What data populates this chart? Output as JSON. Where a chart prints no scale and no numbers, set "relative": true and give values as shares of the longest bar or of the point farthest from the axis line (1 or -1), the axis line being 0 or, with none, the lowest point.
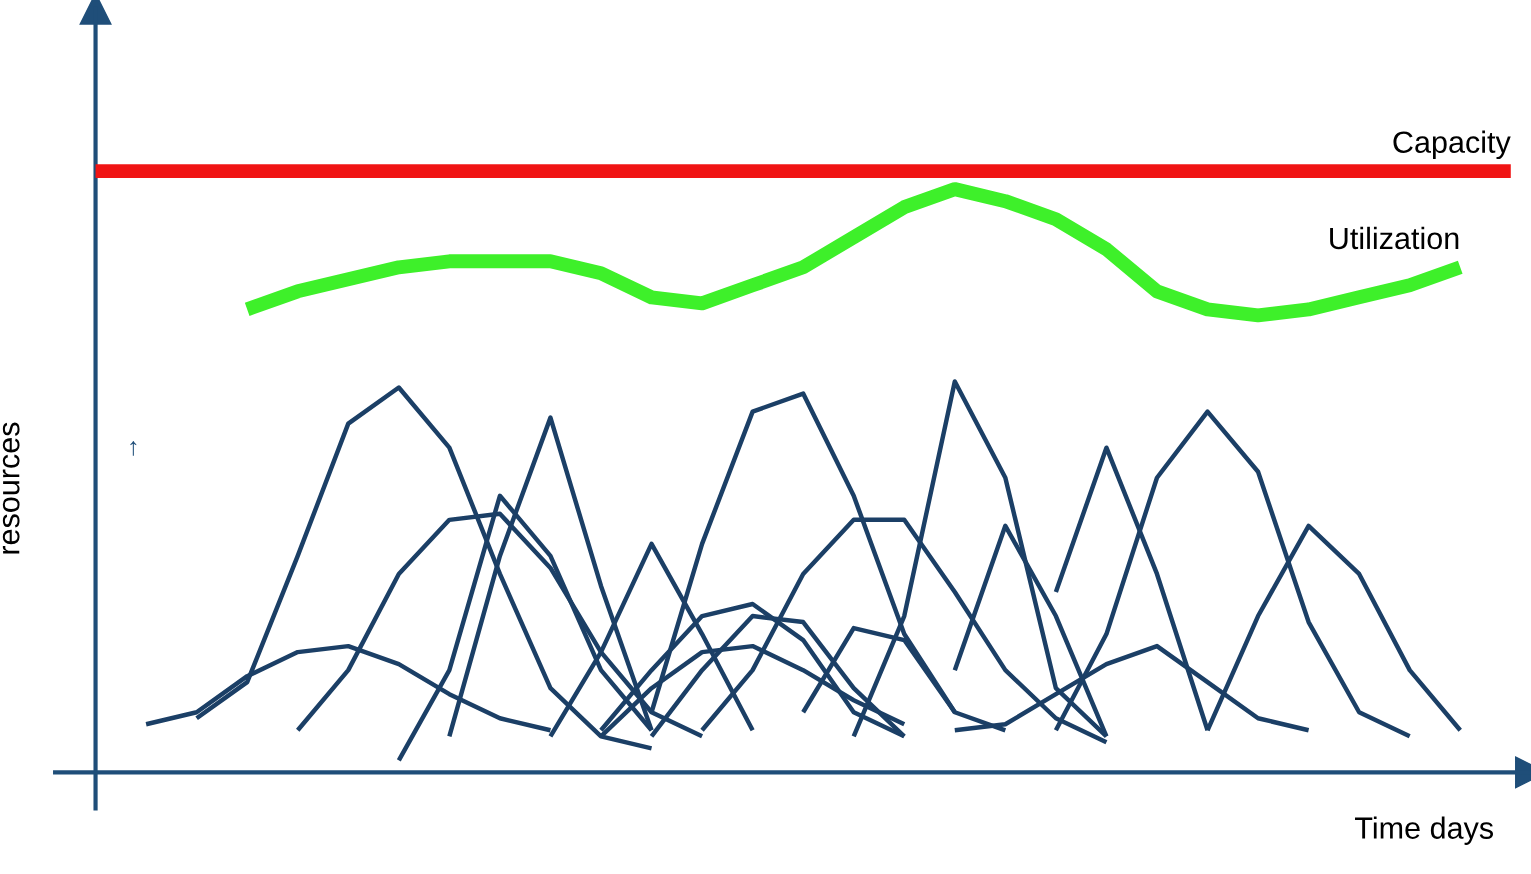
{
  "chart_data": {
    "type": "line",
    "relative": true,
    "xlabel": "Time days",
    "ylabel": "resources",
    "annotations": [
      "↑"
    ],
    "legend": false,
    "marker": "none",
    "line_style": "solid",
    "categories": [
      null,
      null,
      null,
      null,
      null,
      null,
      null,
      null,
      null,
      null,
      null,
      null,
      null,
      null,
      null,
      null,
      null,
      null,
      null,
      null,
      null,
      null,
      null,
      null,
      null,
      null,
      null,
      null,
      null
    ],
    "series": [
      {
        "name": "Capacity",
        "color": "#f01414",
        "values": [
          1,
          1,
          1,
          1,
          1,
          1,
          1,
          1,
          1,
          1,
          1,
          1,
          1,
          1,
          1,
          1,
          1,
          1,
          1,
          1,
          1,
          1,
          1,
          1,
          1,
          1,
          1,
          1,
          1
        ]
      },
      {
        "name": "Utilization",
        "color": "#3ef02a",
        "values": [
          null,
          null,
          null,
          0.77,
          0.8,
          0.82,
          0.84,
          0.85,
          0.85,
          0.85,
          0.83,
          0.79,
          0.78,
          0.81,
          0.84,
          0.89,
          0.94,
          0.97,
          0.95,
          0.92,
          0.87,
          0.8,
          0.77,
          0.76,
          0.77,
          0.79,
          0.81,
          0.84,
          null
        ]
      },
      {
        "color": "#1b3f66",
        "values": [
          null,
          0.08,
          0.1,
          0.16,
          0.2,
          0.21,
          0.18,
          0.13,
          0.09,
          0.07,
          null,
          null,
          null,
          null,
          null,
          null,
          null,
          null,
          null,
          null,
          null,
          null,
          null,
          null,
          null,
          null,
          null,
          null,
          null
        ]
      },
      {
        "color": "#1b3f66",
        "values": [
          null,
          null,
          0.09,
          0.15,
          0.36,
          0.58,
          0.64,
          0.54,
          0.33,
          0.14,
          0.06,
          0.04,
          null,
          null,
          null,
          null,
          null,
          null,
          null,
          null,
          null,
          null,
          null,
          null,
          null,
          null,
          null,
          null,
          null
        ]
      },
      {
        "color": "#1b3f66",
        "values": [
          null,
          null,
          null,
          null,
          0.07,
          0.17,
          0.33,
          0.42,
          0.43,
          0.34,
          0.2,
          0.1,
          0.06,
          null,
          null,
          null,
          null,
          null,
          null,
          null,
          null,
          null,
          null,
          null,
          null,
          null,
          null,
          null,
          null
        ]
      },
      {
        "color": "#1b3f66",
        "values": [
          null,
          null,
          null,
          null,
          null,
          null,
          0.02,
          0.17,
          0.46,
          0.36,
          0.17,
          0.07,
          null,
          null,
          null,
          null,
          null,
          null,
          null,
          null,
          null,
          null,
          null,
          null,
          null,
          null,
          null,
          null,
          null
        ]
      },
      {
        "color": "#1b3f66",
        "values": [
          null,
          null,
          null,
          null,
          null,
          null,
          null,
          0.06,
          0.36,
          0.59,
          0.31,
          0.07,
          null,
          null,
          null,
          null,
          null,
          null,
          null,
          null,
          null,
          null,
          null,
          null,
          null,
          null,
          null,
          null,
          null
        ]
      },
      {
        "color": "#1b3f66",
        "values": [
          null,
          null,
          null,
          null,
          null,
          null,
          null,
          null,
          null,
          0.06,
          0.2,
          0.38,
          0.23,
          0.07,
          null,
          null,
          null,
          null,
          null,
          null,
          null,
          null,
          null,
          null,
          null,
          null,
          null,
          null,
          null
        ]
      },
      {
        "color": "#1b3f66",
        "values": [
          null,
          null,
          null,
          null,
          null,
          null,
          null,
          null,
          null,
          null,
          0.07,
          0.17,
          0.26,
          0.28,
          0.22,
          0.1,
          0.06,
          null,
          null,
          null,
          null,
          null,
          null,
          null,
          null,
          null,
          null,
          null,
          null
        ]
      },
      {
        "color": "#1b3f66",
        "values": [
          null,
          null,
          null,
          null,
          null,
          null,
          null,
          null,
          null,
          null,
          0.06,
          0.14,
          0.2,
          0.21,
          0.17,
          0.12,
          0.08,
          null,
          null,
          null,
          null,
          null,
          null,
          null,
          null,
          null,
          null,
          null,
          null
        ]
      },
      {
        "color": "#1b3f66",
        "values": [
          null,
          null,
          null,
          null,
          null,
          null,
          null,
          null,
          null,
          null,
          null,
          0.1,
          0.38,
          0.6,
          0.63,
          0.46,
          0.23,
          0.1,
          0.07,
          null,
          null,
          null,
          null,
          null,
          null,
          null,
          null,
          null,
          null
        ]
      },
      {
        "color": "#1b3f66",
        "values": [
          null,
          null,
          null,
          null,
          null,
          null,
          null,
          null,
          null,
          null,
          null,
          0.06,
          0.17,
          0.26,
          0.25,
          0.14,
          0.06,
          null,
          null,
          null,
          null,
          null,
          null,
          null,
          null,
          null,
          null,
          null,
          null
        ]
      },
      {
        "color": "#1b3f66",
        "values": [
          null,
          null,
          null,
          null,
          null,
          null,
          null,
          null,
          null,
          null,
          null,
          null,
          0.07,
          0.17,
          0.33,
          0.42,
          0.42,
          0.3,
          0.17,
          0.09,
          0.05,
          null,
          null,
          null,
          null,
          null,
          null,
          null,
          null
        ]
      },
      {
        "color": "#1b3f66",
        "values": [
          null,
          null,
          null,
          null,
          null,
          null,
          null,
          null,
          null,
          null,
          null,
          null,
          null,
          null,
          0.1,
          0.24,
          0.22,
          0.1,
          null,
          null,
          null,
          null,
          null,
          null,
          null,
          null,
          null,
          null,
          null
        ]
      },
      {
        "color": "#1b3f66",
        "values": [
          null,
          null,
          null,
          null,
          null,
          null,
          null,
          null,
          null,
          null,
          null,
          null,
          null,
          null,
          null,
          0.06,
          0.26,
          0.65,
          0.49,
          0.14,
          0.06,
          null,
          null,
          null,
          null,
          null,
          null,
          null,
          null
        ]
      },
      {
        "color": "#1b3f66",
        "values": [
          null,
          null,
          null,
          null,
          null,
          null,
          null,
          null,
          null,
          null,
          null,
          null,
          null,
          null,
          null,
          null,
          null,
          0.17,
          0.41,
          0.26,
          0.06,
          null,
          null,
          null,
          null,
          null,
          null,
          null,
          null
        ]
      },
      {
        "color": "#1b3f66",
        "values": [
          null,
          null,
          null,
          null,
          null,
          null,
          null,
          null,
          null,
          null,
          null,
          null,
          null,
          null,
          null,
          null,
          null,
          0.07,
          0.08,
          0.13,
          0.18,
          0.21,
          0.15,
          0.09,
          0.07,
          null,
          null,
          null,
          null
        ]
      },
      {
        "color": "#1b3f66",
        "values": [
          null,
          null,
          null,
          null,
          null,
          null,
          null,
          null,
          null,
          null,
          null,
          null,
          null,
          null,
          null,
          null,
          null,
          null,
          null,
          0.3,
          0.54,
          0.33,
          0.07,
          null,
          null,
          null,
          null,
          null,
          null
        ]
      },
      {
        "color": "#1b3f66",
        "values": [
          null,
          null,
          null,
          null,
          null,
          null,
          null,
          null,
          null,
          null,
          null,
          null,
          null,
          null,
          null,
          null,
          null,
          null,
          null,
          0.07,
          0.23,
          0.49,
          0.6,
          0.5,
          0.25,
          0.1,
          0.06,
          null,
          null
        ]
      },
      {
        "color": "#1b3f66",
        "values": [
          null,
          null,
          null,
          null,
          null,
          null,
          null,
          null,
          null,
          null,
          null,
          null,
          null,
          null,
          null,
          null,
          null,
          null,
          null,
          null,
          null,
          null,
          0.07,
          0.26,
          0.41,
          0.33,
          0.17,
          0.07,
          null
        ]
      }
    ]
  }
}
